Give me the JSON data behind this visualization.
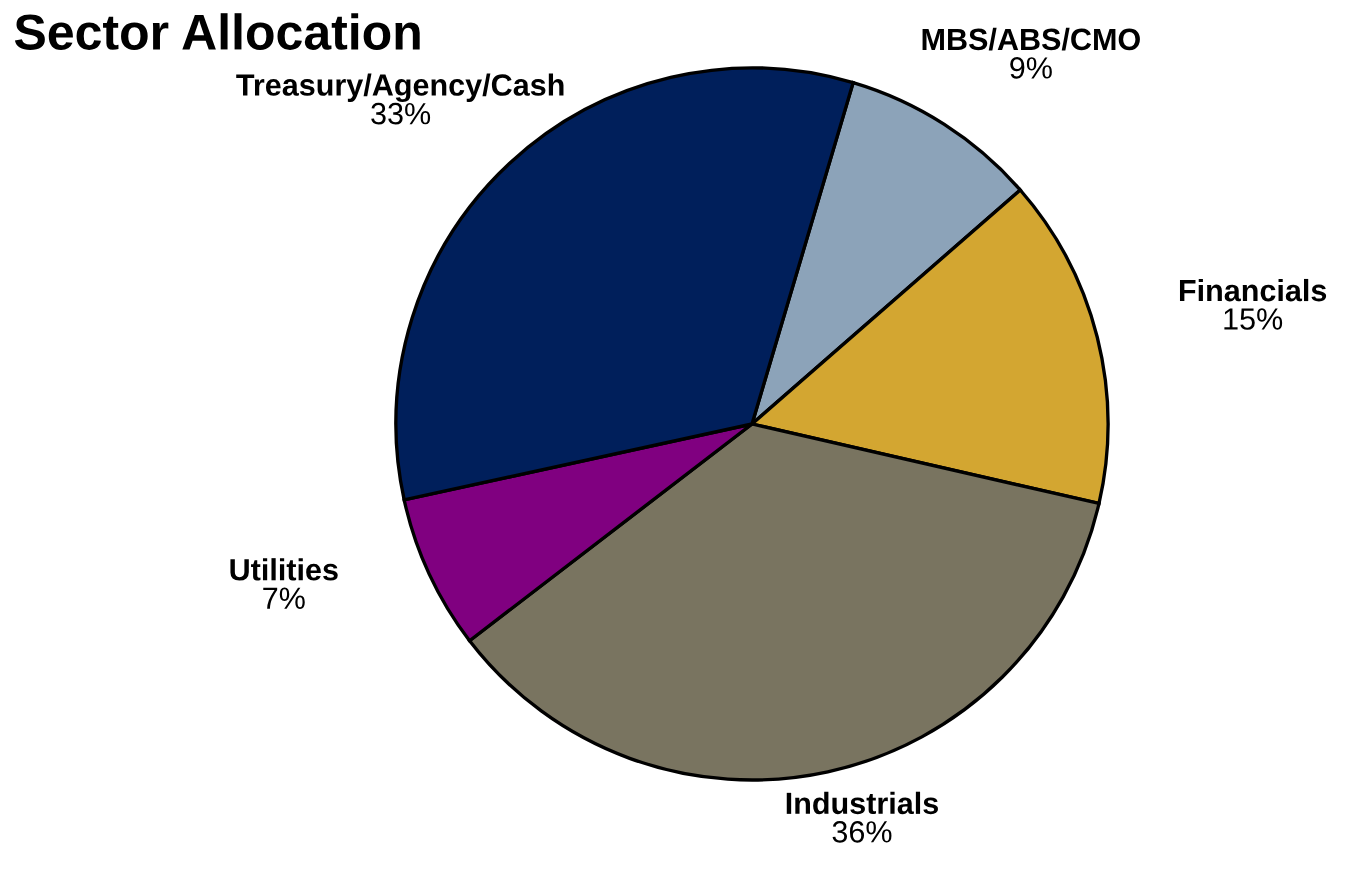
{
  "chart_data": {
    "type": "pie",
    "title": "Sector Allocation",
    "categories": [
      "MBS/ABS/CMO",
      "Financials",
      "Industrials",
      "Utilities",
      "Treasury/Agency/Cash"
    ],
    "values": [
      9,
      15,
      36,
      7,
      33
    ],
    "colors": [
      "#8ca3b9",
      "#d3a631",
      "#797460",
      "#800080",
      "#001f5b"
    ],
    "value_labels": [
      "9%",
      "15%",
      "36%",
      "7%",
      "33%"
    ]
  }
}
